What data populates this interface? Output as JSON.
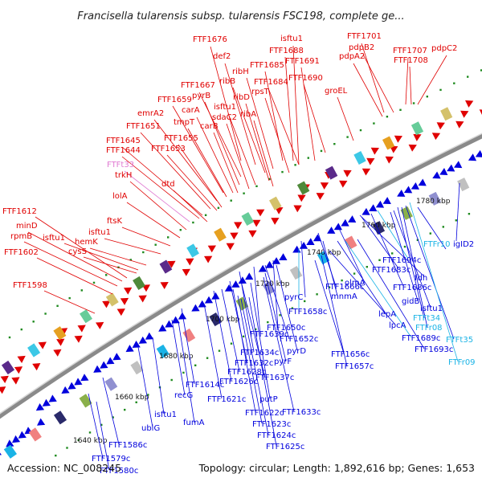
{
  "title": "Francisella tularensis subsp. tularensis FSC198, complete ge...",
  "footer": {
    "accession": "Accession: NC_008245",
    "topology": "Topology: circular; Length: 1,892,616 bp; Genes: 1,653"
  },
  "colors": {
    "forward": "#e00000",
    "reverse": "#0000dd",
    "rna": "#e07ad2",
    "trna": "#1ab3e6",
    "backbone": "#8a8a8a",
    "dots": "#1f8a1f"
  },
  "scale_labels": [
    "1640 kbp",
    "1660 kbp",
    "1680 kbp",
    "1700 kbp",
    "1720 kbp",
    "1740 kbp",
    "1760 kbp",
    "1780 kbp"
  ],
  "outer_labels": [
    "FTF1676",
    "isftu1",
    "FTF1701",
    "FTF1688",
    "def2",
    "pdpB2",
    "FTF1707",
    "pdpC2",
    "FTF1685",
    "FTF1691",
    "pdpA2",
    "FTF1708",
    "ribH",
    "ribB",
    "FTF1684",
    "FTF1690",
    "FTF1667",
    "rpsT",
    "groEL",
    "pyrB",
    "ribD",
    "FTF1659",
    "carA",
    "isftu1",
    "emrA2",
    "sdaC2",
    "ribA",
    "tmpT",
    "carB",
    "FTF1651",
    "FTF1655",
    "FTF1645",
    "FTF1653",
    "FTF1644",
    "FTFt33",
    "trkH",
    "dtd",
    "lolA",
    "FTF1612",
    "ftsK",
    "minD",
    "isftu1",
    "rpmB",
    "isftu1",
    "hemK",
    "FTF1602",
    "cysS",
    "FTF1598"
  ],
  "inner_labels": [
    "1780 kbp",
    "igID2",
    "FTFr10",
    "FTF1694c",
    "FTF1683c",
    "fdh",
    "olmA",
    "FTF1686c",
    "FTF1666c",
    "mnmA",
    "gidB",
    "isftu1",
    "pyrC",
    "lepA",
    "FTFt34",
    "FTF1658c",
    "lpcA",
    "FTFr08",
    "FTF1689c",
    "FTFt35",
    "FTF1693c",
    "FTFr09",
    "FTF1650c",
    "FTF1639c",
    "FTF1652c",
    "FTF1634c",
    "pyrD",
    "FTF1656c",
    "FTF1632c",
    "pyrF",
    "FTF1657c",
    "FTF1628c",
    "FTF1637c",
    "FTF1626c",
    "FTF1614c",
    "recG",
    "FTF1621c",
    "putP",
    "isftu1",
    "FTF1633c",
    "fumA",
    "FTF1622c",
    "ubiG",
    "FTF1623c",
    "FTF1586c",
    "FTF1624c",
    "FTF1579c",
    "FTF1625c",
    "FTF1580c"
  ]
}
